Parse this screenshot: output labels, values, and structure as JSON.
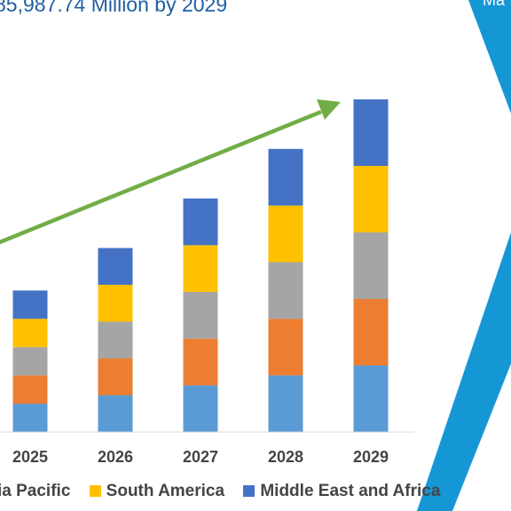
{
  "title": "85,987.74 Million by 2029",
  "corner_label": "Ma",
  "colors": {
    "background_accent": "#1597d6",
    "trend_arrow": "#71ad47"
  },
  "chart_data": {
    "type": "bar",
    "stacked": true,
    "categories": [
      "2025",
      "2026",
      "2027",
      "2028",
      "2029"
    ],
    "series": [
      {
        "name": "",
        "color": "#5b9bd5",
        "values": [
          1.0,
          1.3,
          1.65,
          2.0,
          2.35
        ]
      },
      {
        "name": "",
        "color": "#ed7d31",
        "values": [
          1.0,
          1.3,
          1.65,
          2.0,
          2.35
        ]
      },
      {
        "name": "",
        "color": "#a5a5a5",
        "values": [
          1.0,
          1.3,
          1.65,
          2.0,
          2.35
        ]
      },
      {
        "name": "South America",
        "color": "#ffc000",
        "values": [
          1.0,
          1.3,
          1.65,
          2.0,
          2.35
        ]
      },
      {
        "name": "Middle East and Africa",
        "color": "#4472c4",
        "values": [
          1.0,
          1.3,
          1.65,
          2.0,
          2.35
        ]
      }
    ],
    "legend": [
      {
        "label": "ia Pacific",
        "color": "#a5a5a5"
      },
      {
        "label": "South America",
        "color": "#ffc000"
      },
      {
        "label": "Middle East and Africa",
        "color": "#4472c4"
      }
    ],
    "ylim": [
      0,
      12.5
    ],
    "grid": false,
    "legend_position": "bottom",
    "trend_arrow": true
  }
}
